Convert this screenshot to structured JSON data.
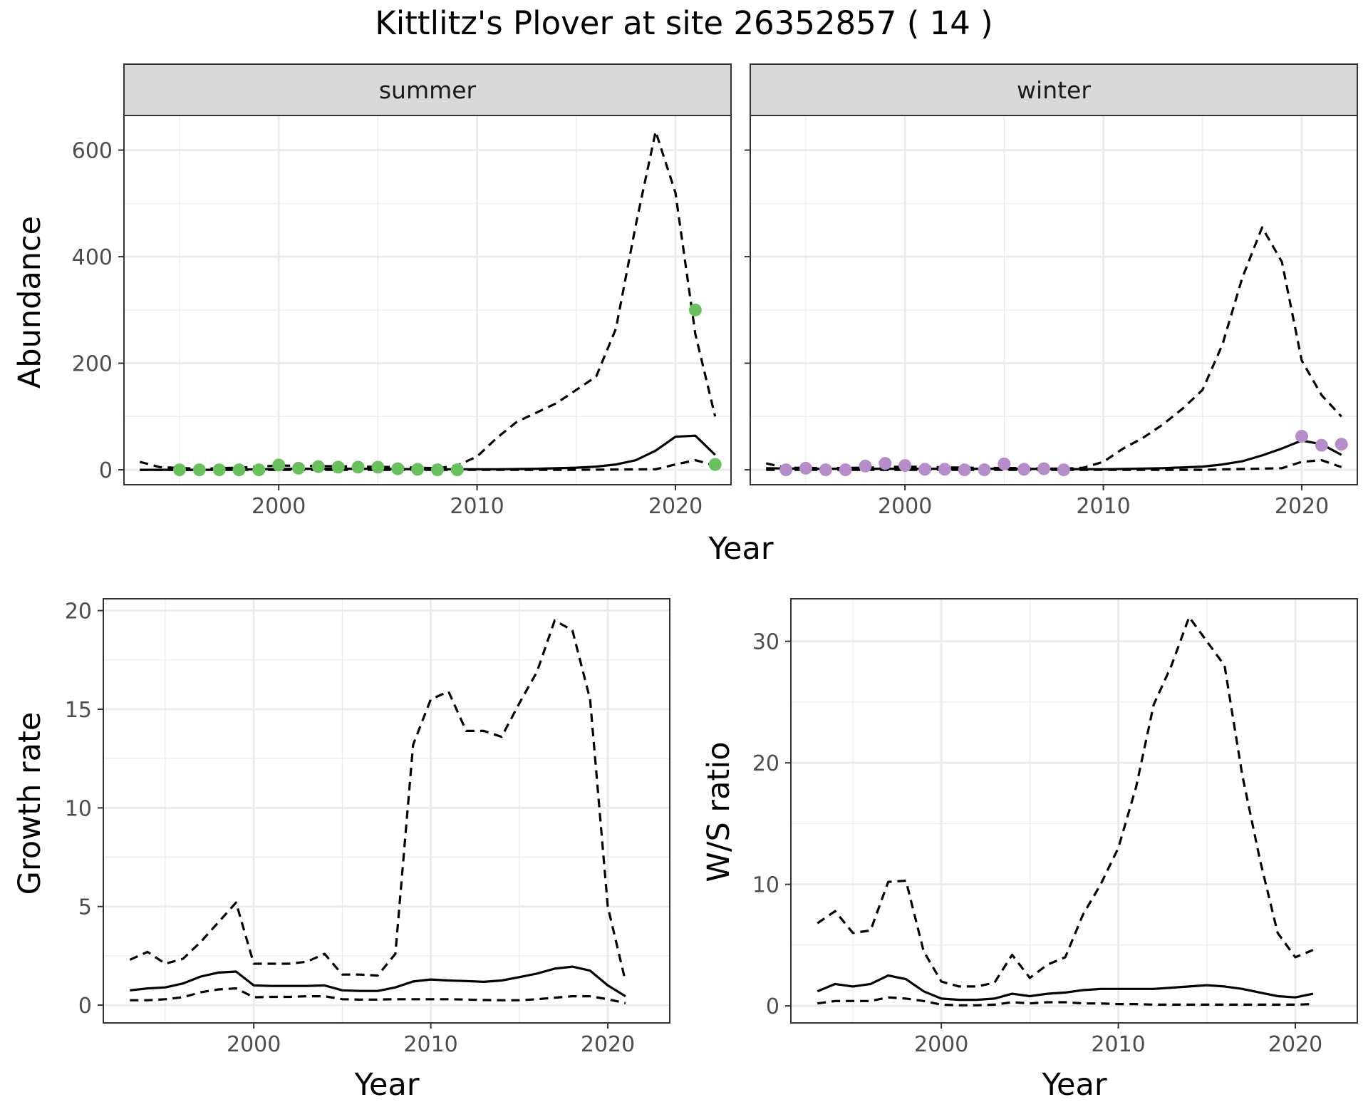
{
  "title": "Kittlitz's Plover at site 26352857 ( 14 )",
  "colors": {
    "summer_points": "#6abf5e",
    "winter_points": "#b48dc9",
    "lines": "#000000",
    "strip_bg": "#d9d9d9",
    "grid": "#ebebeb"
  },
  "chart_data": [
    {
      "type": "line",
      "panel": "summer",
      "strip_label": "summer",
      "xlabel": "Year",
      "ylabel": "Abundance",
      "xlim": [
        1992.2,
        2022.8
      ],
      "ylim": [
        -28,
        665
      ],
      "x_ticks": [
        2000,
        2010,
        2020
      ],
      "y_ticks": [
        0,
        200,
        400,
        600
      ],
      "grid": true,
      "series": [
        {
          "style": "solid",
          "x": [
            1993,
            1995,
            1997,
            1999,
            2001,
            2003,
            2005,
            2007,
            2009,
            2011,
            2013,
            2015,
            2016,
            2017,
            2018,
            2019,
            2020,
            2021,
            2022
          ],
          "y": [
            0,
            0,
            0,
            1,
            2,
            2,
            2,
            1,
            1,
            1,
            2,
            4,
            6,
            10,
            18,
            36,
            62,
            64,
            28
          ]
        },
        {
          "style": "dashed",
          "x": [
            1993,
            1994,
            1996,
            1998,
            2000,
            2002,
            2004,
            2006,
            2008,
            2009,
            2010,
            2011,
            2012,
            2014,
            2016,
            2017,
            2018,
            2019,
            2020,
            2021,
            2022
          ],
          "y": [
            15,
            5,
            2,
            4,
            8,
            7,
            6,
            5,
            3,
            8,
            25,
            60,
            90,
            125,
            175,
            265,
            460,
            635,
            520,
            255,
            100
          ]
        },
        {
          "style": "dashed",
          "x": [
            1993,
            2000,
            2005,
            2010,
            2015,
            2019,
            2020,
            2021,
            2022
          ],
          "y": [
            0,
            0,
            0,
            0,
            0,
            1,
            10,
            18,
            8
          ]
        }
      ],
      "points": {
        "x": [
          1995,
          1996,
          1997,
          1998,
          1999,
          2000,
          2001,
          2002,
          2003,
          2004,
          2005,
          2006,
          2007,
          2008,
          2009,
          2021,
          2022
        ],
        "y": [
          0,
          0,
          0,
          0,
          0,
          9,
          3,
          6,
          5,
          5,
          5,
          2,
          1,
          0,
          0,
          300,
          10
        ]
      }
    },
    {
      "type": "line",
      "panel": "winter",
      "strip_label": "winter",
      "xlabel": "Year",
      "ylabel": "Abundance",
      "xlim": [
        1992.2,
        2022.8
      ],
      "ylim": [
        -28,
        665
      ],
      "x_ticks": [
        2000,
        2010,
        2020
      ],
      "y_ticks": [
        0,
        200,
        400,
        600
      ],
      "grid": true,
      "series": [
        {
          "style": "solid",
          "x": [
            1993,
            1995,
            2000,
            2005,
            2010,
            2013,
            2015,
            2016,
            2017,
            2018,
            2019,
            2020,
            2021,
            2022
          ],
          "y": [
            3,
            2,
            2,
            2,
            1,
            3,
            6,
            10,
            16,
            27,
            40,
            55,
            48,
            28
          ]
        },
        {
          "style": "dashed",
          "x": [
            1993,
            1994,
            1996,
            1998,
            2000,
            2003,
            2006,
            2008,
            2009,
            2010,
            2011,
            2012,
            2013,
            2014,
            2015,
            2016,
            2017,
            2018,
            2019,
            2020,
            2021,
            2022
          ],
          "y": [
            12,
            4,
            3,
            4,
            6,
            4,
            3,
            2,
            4,
            15,
            40,
            60,
            85,
            115,
            150,
            235,
            360,
            455,
            390,
            205,
            140,
            100
          ]
        },
        {
          "style": "dashed",
          "x": [
            1993,
            2000,
            2005,
            2010,
            2015,
            2019,
            2020,
            2021,
            2022
          ],
          "y": [
            0,
            0,
            0,
            0,
            0,
            3,
            15,
            18,
            5
          ]
        }
      ],
      "points": {
        "x": [
          1994,
          1995,
          1996,
          1997,
          1998,
          1999,
          2000,
          2001,
          2002,
          2003,
          2004,
          2005,
          2006,
          2007,
          2008,
          2020,
          2021,
          2022
        ],
        "y": [
          0,
          3,
          0,
          0,
          7,
          12,
          8,
          1,
          1,
          0,
          0,
          11,
          1,
          2,
          0,
          63,
          46,
          48
        ]
      }
    },
    {
      "type": "line",
      "panel": "growth",
      "xlabel": "Year",
      "ylabel": "Growth rate",
      "xlim": [
        1991.5,
        2023.5
      ],
      "ylim": [
        -0.9,
        20.6
      ],
      "x_ticks": [
        2000,
        2010,
        2020
      ],
      "y_ticks": [
        0,
        5,
        10,
        15,
        20
      ],
      "grid": true,
      "series": [
        {
          "style": "solid",
          "x": [
            1993,
            1994,
            1995,
            1996,
            1997,
            1998,
            1999,
            2000,
            2001,
            2002,
            2003,
            2004,
            2005,
            2006,
            2007,
            2008,
            2009,
            2010,
            2011,
            2012,
            2013,
            2014,
            2015,
            2016,
            2017,
            2018,
            2019,
            2020,
            2021
          ],
          "y": [
            0.75,
            0.85,
            0.9,
            1.1,
            1.45,
            1.65,
            1.7,
            1.0,
            0.97,
            0.97,
            0.97,
            1.0,
            0.75,
            0.72,
            0.72,
            0.9,
            1.2,
            1.3,
            1.25,
            1.22,
            1.18,
            1.25,
            1.42,
            1.6,
            1.85,
            1.95,
            1.75,
            1.0,
            0.45
          ]
        },
        {
          "style": "dashed",
          "x": [
            1993,
            1994,
            1995,
            1996,
            1997,
            1998,
            1999,
            2000,
            2001,
            2002,
            2003,
            2004,
            2005,
            2006,
            2007,
            2008,
            2009,
            2010,
            2011,
            2012,
            2013,
            2014,
            2015,
            2016,
            2017,
            2018,
            2019,
            2020,
            2021
          ],
          "y": [
            2.3,
            2.7,
            2.1,
            2.35,
            3.2,
            4.2,
            5.2,
            2.1,
            2.1,
            2.1,
            2.2,
            2.6,
            1.55,
            1.55,
            1.5,
            2.6,
            13.2,
            15.5,
            15.9,
            13.9,
            13.9,
            13.6,
            15.3,
            16.9,
            19.5,
            19.0,
            15.5,
            5.0,
            1.2
          ]
        },
        {
          "style": "dashed",
          "x": [
            1993,
            1994,
            1995,
            1996,
            1997,
            1998,
            1999,
            2000,
            2001,
            2002,
            2003,
            2004,
            2005,
            2006,
            2007,
            2008,
            2009,
            2010,
            2011,
            2012,
            2013,
            2014,
            2015,
            2016,
            2017,
            2018,
            2019,
            2020,
            2021
          ],
          "y": [
            0.25,
            0.25,
            0.3,
            0.4,
            0.65,
            0.8,
            0.85,
            0.4,
            0.42,
            0.42,
            0.45,
            0.45,
            0.3,
            0.28,
            0.28,
            0.3,
            0.3,
            0.3,
            0.3,
            0.28,
            0.26,
            0.25,
            0.25,
            0.3,
            0.38,
            0.45,
            0.45,
            0.3,
            0.1
          ]
        }
      ]
    },
    {
      "type": "line",
      "panel": "ratio",
      "xlabel": "Year",
      "ylabel": "W/S ratio",
      "xlim": [
        1991.5,
        2023.5
      ],
      "ylim": [
        -1.4,
        33.5
      ],
      "x_ticks": [
        2000,
        2010,
        2020
      ],
      "y_ticks": [
        0,
        10,
        20,
        30
      ],
      "grid": true,
      "series": [
        {
          "style": "solid",
          "x": [
            1993,
            1994,
            1995,
            1996,
            1997,
            1998,
            1999,
            2000,
            2001,
            2002,
            2003,
            2004,
            2005,
            2006,
            2007,
            2008,
            2009,
            2010,
            2011,
            2012,
            2013,
            2014,
            2015,
            2016,
            2017,
            2018,
            2019,
            2020,
            2021
          ],
          "y": [
            1.2,
            1.8,
            1.6,
            1.8,
            2.5,
            2.2,
            1.2,
            0.6,
            0.5,
            0.5,
            0.6,
            1.0,
            0.8,
            1.0,
            1.1,
            1.3,
            1.4,
            1.4,
            1.4,
            1.4,
            1.5,
            1.6,
            1.7,
            1.6,
            1.4,
            1.1,
            0.8,
            0.7,
            1.0
          ]
        },
        {
          "style": "dashed",
          "x": [
            1993,
            1994,
            1995,
            1996,
            1997,
            1998,
            1999,
            2000,
            2001,
            2002,
            2003,
            2004,
            2005,
            2006,
            2007,
            2008,
            2009,
            2010,
            2011,
            2012,
            2013,
            2014,
            2015,
            2016,
            2017,
            2018,
            2019,
            2020,
            2021
          ],
          "y": [
            6.8,
            7.8,
            6.0,
            6.2,
            10.2,
            10.3,
            4.5,
            2.0,
            1.6,
            1.6,
            1.9,
            4.2,
            2.3,
            3.4,
            4.0,
            7.5,
            10.0,
            13.0,
            18.0,
            24.8,
            28.0,
            32.0,
            30.0,
            28.0,
            19.0,
            12.0,
            6.0,
            4.0,
            4.6
          ]
        },
        {
          "style": "dashed",
          "x": [
            1993,
            1994,
            1995,
            1996,
            1997,
            1998,
            1999,
            2000,
            2001,
            2002,
            2003,
            2004,
            2005,
            2006,
            2007,
            2008,
            2009,
            2010,
            2011,
            2012,
            2013,
            2014,
            2015,
            2016,
            2017,
            2018,
            2019,
            2020,
            2021
          ],
          "y": [
            0.2,
            0.4,
            0.4,
            0.4,
            0.7,
            0.6,
            0.4,
            0.1,
            0.05,
            0.05,
            0.1,
            0.3,
            0.2,
            0.3,
            0.3,
            0.2,
            0.2,
            0.15,
            0.15,
            0.1,
            0.1,
            0.1,
            0.1,
            0.1,
            0.1,
            0.1,
            0.1,
            0.1,
            0.15
          ]
        }
      ]
    }
  ]
}
